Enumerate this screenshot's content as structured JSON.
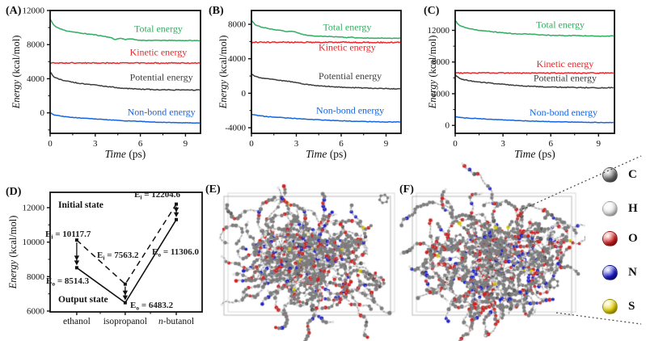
{
  "panel_labels": {
    "A": "(A)",
    "B": "(B)",
    "C": "(C)",
    "D": "(D)",
    "E": "(E)",
    "F": "(F)"
  },
  "axis_text": {
    "xlabel_main": "Time",
    "xlabel_unit": " (ps)",
    "ylabel_main": "Energy",
    "ylabel_unit": " (kcal/mol)"
  },
  "colors": {
    "total": "#2fae60",
    "kinetic": "#e8282a",
    "potential": "#3d3d3d",
    "nonbond": "#1565e0",
    "axis": "#111111"
  },
  "chart_data": [
    {
      "id": "A",
      "type": "line",
      "xlabel": "Time (ps)",
      "ylabel": "Energy (kcal/mol)",
      "xlim": [
        0,
        10
      ],
      "ylim": [
        -2400,
        12000
      ],
      "xticks": [
        0,
        3,
        6,
        9
      ],
      "xminor": [
        1.5,
        4.5,
        7.5
      ],
      "yticks": [
        0,
        4000,
        8000,
        12000
      ],
      "yminor": [
        -2000,
        2000,
        6000,
        10000
      ],
      "series": [
        {
          "name": "Total energy",
          "color": "#2fae60",
          "amp": 35,
          "label_pos": [
            7.2,
            9500
          ],
          "t": [
            0,
            0.25,
            0.6,
            1,
            1.5,
            2,
            2.5,
            3,
            3.5,
            4,
            4.3,
            4.7,
            5,
            5.3,
            5.8,
            6.5,
            8,
            10
          ],
          "v": [
            11000,
            10250,
            9900,
            9650,
            9500,
            9350,
            9250,
            9150,
            9000,
            8850,
            8600,
            8750,
            8600,
            8700,
            8520,
            8500,
            8490,
            8470
          ]
        },
        {
          "name": "Kinetic energy",
          "color": "#e8282a",
          "amp": 55,
          "label_pos": [
            7.2,
            6750
          ],
          "t": [
            0,
            10
          ],
          "v": [
            5850,
            5840
          ]
        },
        {
          "name": "Potential energy",
          "color": "#3d3d3d",
          "amp": 45,
          "label_pos": [
            7.4,
            3800
          ],
          "t": [
            0,
            0.25,
            0.6,
            1,
            1.5,
            2,
            2.5,
            3,
            3.5,
            4,
            4.5,
            5,
            5.5,
            6,
            7,
            8,
            9,
            10
          ],
          "v": [
            4800,
            4200,
            3950,
            3750,
            3600,
            3450,
            3350,
            3250,
            3150,
            3050,
            2950,
            2880,
            2820,
            2780,
            2720,
            2700,
            2690,
            2680
          ]
        },
        {
          "name": "Non-bond energy",
          "color": "#1565e0",
          "amp": 28,
          "label_pos": [
            7.4,
            -280
          ],
          "t": [
            0,
            0.3,
            0.7,
            1,
            1.5,
            2,
            3,
            4,
            5,
            6,
            7,
            8,
            9,
            10
          ],
          "v": [
            0,
            -250,
            -380,
            -450,
            -530,
            -600,
            -720,
            -830,
            -930,
            -1010,
            -1080,
            -1130,
            -1170,
            -1200
          ]
        }
      ]
    },
    {
      "id": "B",
      "type": "line",
      "xlabel": "Time (ps)",
      "ylabel": "Energy (kcal/mol)",
      "xlim": [
        0,
        10
      ],
      "ylim": [
        -4650,
        9600
      ],
      "xticks": [
        0,
        3,
        6,
        9
      ],
      "xminor": [
        1.5,
        4.5,
        7.5
      ],
      "yticks": [
        -4000,
        0,
        4000,
        8000
      ],
      "yminor": [
        -2000,
        2000,
        6000
      ],
      "series": [
        {
          "name": "Total energy",
          "color": "#2fae60",
          "amp": 30,
          "label_pos": [
            6.4,
            7300
          ],
          "t": [
            0,
            0.25,
            0.6,
            1,
            1.5,
            2,
            2.3,
            2.7,
            3,
            3.3,
            3.6,
            4,
            4.5,
            5,
            5.5,
            6,
            6.3,
            6.7,
            7,
            7.5,
            8,
            9,
            10
          ],
          "v": [
            8500,
            7950,
            7700,
            7550,
            7380,
            7300,
            7120,
            7200,
            7050,
            6900,
            6750,
            6680,
            6620,
            6600,
            6560,
            6540,
            6450,
            6500,
            6420,
            6400,
            6400,
            6390,
            6380
          ]
        },
        {
          "name": "Kinetic energy",
          "color": "#e8282a",
          "amp": 65,
          "label_pos": [
            6.4,
            4950
          ],
          "t": [
            0,
            10
          ],
          "v": [
            5920,
            5900
          ]
        },
        {
          "name": "Potential energy",
          "color": "#3d3d3d",
          "amp": 40,
          "label_pos": [
            6.6,
            1650
          ],
          "t": [
            0,
            0.25,
            0.6,
            1,
            1.5,
            1.8,
            2.2,
            2.5,
            3,
            3.5,
            4,
            4.5,
            5,
            5.5,
            6,
            7,
            8,
            9,
            10
          ],
          "v": [
            2250,
            1950,
            1800,
            1700,
            1580,
            1500,
            1420,
            1380,
            1250,
            1050,
            950,
            870,
            800,
            750,
            700,
            640,
            590,
            540,
            500
          ]
        },
        {
          "name": "Non-bond energy",
          "color": "#1565e0",
          "amp": 30,
          "label_pos": [
            6.6,
            -2330
          ],
          "t": [
            0,
            0.4,
            1,
            1.5,
            2,
            3,
            4,
            5,
            6,
            7,
            8,
            9,
            10
          ],
          "v": [
            -2450,
            -2580,
            -2700,
            -2760,
            -2820,
            -2950,
            -3040,
            -3120,
            -3200,
            -3260,
            -3300,
            -3330,
            -3350
          ]
        }
      ]
    },
    {
      "id": "C",
      "type": "line",
      "xlabel": "Time (ps)",
      "ylabel": "Energy (kcal/mol)",
      "xlim": [
        0,
        10
      ],
      "ylim": [
        -1000,
        14500
      ],
      "xticks": [
        0,
        3,
        6,
        9
      ],
      "xminor": [
        1.5,
        4.5,
        7.5
      ],
      "yticks": [
        0,
        4000,
        8000,
        12000
      ],
      "yminor": [
        2000,
        6000,
        10000
      ],
      "series": [
        {
          "name": "Total energy",
          "color": "#2fae60",
          "amp": 40,
          "label_pos": [
            6.6,
            12300
          ],
          "t": [
            0,
            0.25,
            0.6,
            1,
            1.5,
            2,
            2.5,
            3,
            3.5,
            4,
            4.5,
            5,
            5.5,
            6,
            7,
            7.5,
            8,
            8.5,
            9,
            10
          ],
          "v": [
            13200,
            12650,
            12350,
            12150,
            12000,
            11900,
            11780,
            11700,
            11600,
            11520,
            11560,
            11470,
            11420,
            11380,
            11320,
            11360,
            11300,
            11320,
            11260,
            11290
          ]
        },
        {
          "name": "Kinetic energy",
          "color": "#e8282a",
          "amp": 55,
          "label_pos": [
            6.9,
            7350
          ],
          "t": [
            0,
            10
          ],
          "v": [
            6620,
            6600
          ]
        },
        {
          "name": "Potential energy",
          "color": "#3d3d3d",
          "amp": 50,
          "label_pos": [
            6.9,
            5600
          ],
          "t": [
            0,
            0.25,
            0.6,
            1,
            1.5,
            2,
            2.5,
            3,
            3.5,
            4,
            4.5,
            5,
            5.5,
            6,
            7,
            8,
            9,
            10
          ],
          "v": [
            6400,
            5950,
            5750,
            5600,
            5480,
            5380,
            5280,
            5200,
            5100,
            5020,
            4960,
            4910,
            4870,
            4840,
            4800,
            4780,
            4740,
            4760
          ]
        },
        {
          "name": "Non-bond energy",
          "color": "#1565e0",
          "amp": 28,
          "label_pos": [
            6.8,
            1250
          ],
          "t": [
            0,
            0.4,
            1,
            1.5,
            2,
            3,
            4,
            5,
            6,
            7,
            8,
            9,
            10
          ],
          "v": [
            1100,
            980,
            900,
            850,
            800,
            700,
            610,
            530,
            470,
            430,
            400,
            370,
            350
          ]
        }
      ]
    },
    {
      "id": "D",
      "type": "line",
      "ylabel": "Energy (kcal/mol)",
      "categories": [
        "ethanol",
        "isopropanol",
        "n-butanol"
      ],
      "cat_fracs": [
        0.175,
        0.494,
        0.83
      ],
      "ylim": [
        5950,
        12890
      ],
      "yticks": [
        6000,
        8000,
        10000,
        12000
      ],
      "yminor": [
        7000,
        9000,
        11000
      ],
      "series": [
        {
          "name": "Initial state",
          "style": "dashed",
          "values": [
            10117.7,
            7563.2,
            12204.6
          ]
        },
        {
          "name": "Output state",
          "style": "solid",
          "values": [
            8514.3,
            6483.2,
            11306.0
          ]
        }
      ],
      "annotations": {
        "initial_state": "Initial state",
        "output_state": "Output state"
      },
      "point_labels": [
        {
          "sym": "E",
          "sub": "i",
          "eq": " = 10117.7"
        },
        {
          "sym": "E",
          "sub": "o",
          "eq": " = 8514.3"
        },
        {
          "sym": "E",
          "sub": "i",
          "eq": " = 7563.2"
        },
        {
          "sym": "E",
          "sub": "o",
          "eq": " = 6483.2"
        },
        {
          "sym": "E",
          "sub": "i",
          "eq": " = 12204.6"
        },
        {
          "sym": "E",
          "sub": "o",
          "eq": " = 11306.0"
        }
      ]
    }
  ],
  "legend": {
    "items": [
      {
        "name": "carbon",
        "symbol": "C",
        "color": "#6f6f6f",
        "shade": "#3c3c3c"
      },
      {
        "name": "hydrogen",
        "symbol": "H",
        "color": "#efefef",
        "shade": "#9a9a9a"
      },
      {
        "name": "oxygen",
        "symbol": "O",
        "color": "#d61f1f",
        "shade": "#7a0c0c"
      },
      {
        "name": "nitrogen",
        "symbol": "N",
        "color": "#1b1bd0",
        "shade": "#0a0a70"
      },
      {
        "name": "sulfur",
        "symbol": "S",
        "color": "#e8d400",
        "shade": "#8f8200"
      }
    ]
  },
  "molecule_palette": {
    "carbon": "#7b7b7b",
    "hydrogen": "#e2e2e2",
    "oxygen": "#d32020",
    "nitrogen": "#2020cd",
    "sulfur": "#ddcc00",
    "bond": "#8f8f8f",
    "cell_box": "#b8b8b8"
  }
}
